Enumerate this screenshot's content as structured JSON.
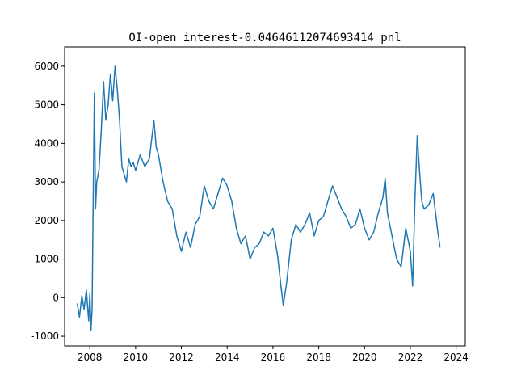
{
  "chart_data": {
    "type": "line",
    "title": "OI-open_interest-0.04646112074693414_pnl",
    "xlabel": "",
    "ylabel": "",
    "xlim": [
      2006.9,
      2024.4
    ],
    "ylim": [
      -1250,
      6500
    ],
    "grid": false,
    "x_ticks": [
      "2008",
      "2010",
      "2012",
      "2014",
      "2016",
      "2018",
      "2020",
      "2022",
      "2024"
    ],
    "y_ticks": [
      "-1000",
      "0",
      "1000",
      "2000",
      "3000",
      "4000",
      "5000",
      "6000"
    ],
    "series": [
      {
        "color": "#1f77b4",
        "x": [
          2007.45,
          2007.55,
          2007.65,
          2007.75,
          2007.85,
          2007.95,
          2008.0,
          2008.05,
          2008.1,
          2008.15,
          2008.2,
          2008.25,
          2008.3,
          2008.4,
          2008.5,
          2008.6,
          2008.7,
          2008.8,
          2008.9,
          2009.0,
          2009.1,
          2009.2,
          2009.3,
          2009.4,
          2009.5,
          2009.6,
          2009.7,
          2009.8,
          2009.9,
          2010.0,
          2010.2,
          2010.4,
          2010.6,
          2010.8,
          2010.9,
          2011.0,
          2011.2,
          2011.4,
          2011.6,
          2011.8,
          2012.0,
          2012.2,
          2012.4,
          2012.6,
          2012.8,
          2013.0,
          2013.2,
          2013.4,
          2013.6,
          2013.8,
          2014.0,
          2014.2,
          2014.4,
          2014.6,
          2014.8,
          2015.0,
          2015.2,
          2015.4,
          2015.6,
          2015.8,
          2016.0,
          2016.2,
          2016.35,
          2016.45,
          2016.6,
          2016.8,
          2017.0,
          2017.2,
          2017.4,
          2017.6,
          2017.8,
          2018.0,
          2018.2,
          2018.4,
          2018.6,
          2018.8,
          2019.0,
          2019.2,
          2019.4,
          2019.6,
          2019.8,
          2020.0,
          2020.2,
          2020.4,
          2020.6,
          2020.8,
          2020.9,
          2021.0,
          2021.2,
          2021.4,
          2021.6,
          2021.8,
          2022.0,
          2022.1,
          2022.2,
          2022.3,
          2022.4,
          2022.5,
          2022.6,
          2022.8,
          2023.0,
          2023.2,
          2023.3
        ],
        "values": [
          -150,
          -500,
          50,
          -300,
          200,
          -600,
          100,
          -850,
          -300,
          2600,
          5300,
          2300,
          3000,
          3300,
          4300,
          5600,
          4600,
          5000,
          5800,
          5100,
          6000,
          5400,
          4600,
          3400,
          3200,
          3000,
          3600,
          3400,
          3500,
          3300,
          3700,
          3400,
          3600,
          4600,
          3900,
          3700,
          3000,
          2500,
          2300,
          1600,
          1200,
          1700,
          1300,
          1900,
          2100,
          2900,
          2500,
          2300,
          2700,
          3100,
          2900,
          2500,
          1800,
          1400,
          1600,
          1000,
          1300,
          1400,
          1700,
          1600,
          1800,
          1100,
          300,
          -200,
          400,
          1500,
          1900,
          1700,
          1900,
          2200,
          1600,
          2000,
          2100,
          2500,
          2900,
          2600,
          2300,
          2100,
          1800,
          1900,
          2300,
          1800,
          1500,
          1700,
          2200,
          2600,
          3100,
          2200,
          1600,
          1000,
          800,
          1800,
          1200,
          300,
          2500,
          4200,
          3300,
          2500,
          2300,
          2400,
          2700,
          1700,
          1300
        ]
      }
    ]
  }
}
